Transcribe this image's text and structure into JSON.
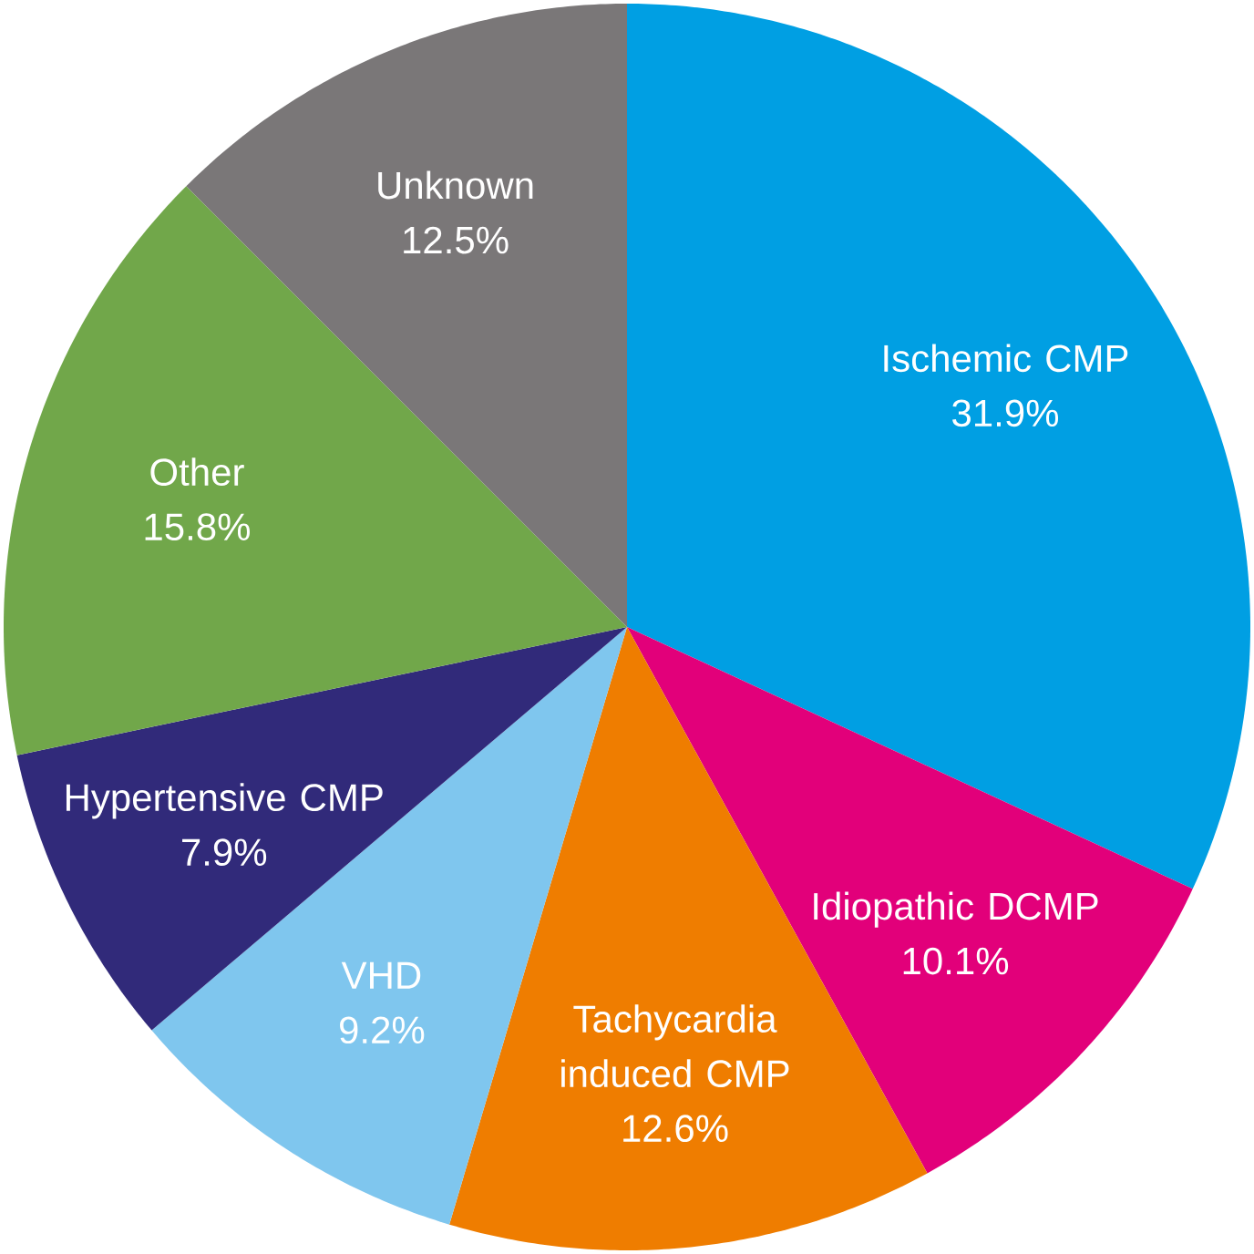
{
  "chart_data": {
    "type": "pie",
    "categories": [
      "Ischemic CMP",
      "Idiopathic DCMP",
      "Tachycardia induced CMP",
      "VHD",
      "Hypertensive CMP",
      "Other",
      "Unknown"
    ],
    "values": [
      31.9,
      10.1,
      12.6,
      9.2,
      7.9,
      15.8,
      12.5
    ],
    "colors": [
      "#009fe3",
      "#e2007a",
      "#ef7d00",
      "#7fc6ee",
      "#312a7a",
      "#71a74a",
      "#7a7778"
    ],
    "value_labels": [
      "31.9%",
      "10.1%",
      "12.6%",
      "9.2%",
      "7.9%",
      "15.8%",
      "12.5%"
    ]
  }
}
